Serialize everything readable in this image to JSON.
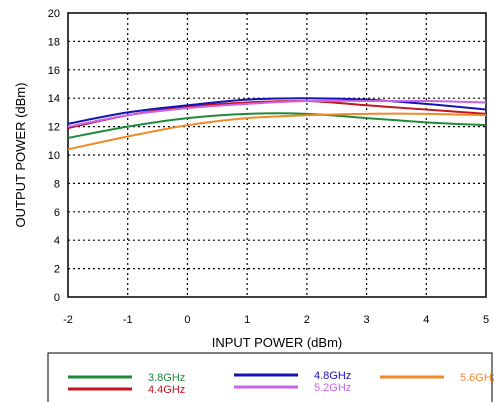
{
  "chart_data": {
    "type": "line",
    "title": "",
    "xlabel": "INPUT POWER (dBm)",
    "ylabel": "OUTPUT POWER (dBm)",
    "xlim": [
      -2,
      5
    ],
    "ylim": [
      0,
      20
    ],
    "xticks": [
      "-2",
      "-1",
      "0",
      "1",
      "2",
      "3",
      "4",
      "5"
    ],
    "yticks": [
      "0",
      "2",
      "4",
      "6",
      "8",
      "10",
      "12",
      "14",
      "16",
      "18",
      "20"
    ],
    "grid": "dotted",
    "legend_position": "bottom",
    "x": [
      -2,
      -1,
      0,
      1,
      2,
      3,
      4,
      5
    ],
    "series": [
      {
        "name": "3.8GHz",
        "color": "#1e8a3a",
        "values": [
          11.2,
          12.0,
          12.6,
          12.9,
          12.9,
          12.6,
          12.3,
          12.1
        ]
      },
      {
        "name": "4.4GHz",
        "color": "#c0141e",
        "values": [
          11.9,
          12.8,
          13.4,
          13.7,
          13.8,
          13.5,
          13.2,
          12.9
        ]
      },
      {
        "name": "4.8GHz",
        "color": "#1414b4",
        "values": [
          12.2,
          13.0,
          13.5,
          13.9,
          14.0,
          13.9,
          13.6,
          13.2
        ]
      },
      {
        "name": "5.2GHz",
        "color": "#c864e6",
        "values": [
          12.0,
          12.8,
          13.3,
          13.6,
          13.8,
          13.8,
          13.8,
          13.7
        ]
      },
      {
        "name": "5.6GHz",
        "color": "#f08a28",
        "values": [
          10.4,
          11.3,
          12.1,
          12.6,
          12.8,
          12.9,
          12.9,
          12.8
        ]
      }
    ]
  }
}
